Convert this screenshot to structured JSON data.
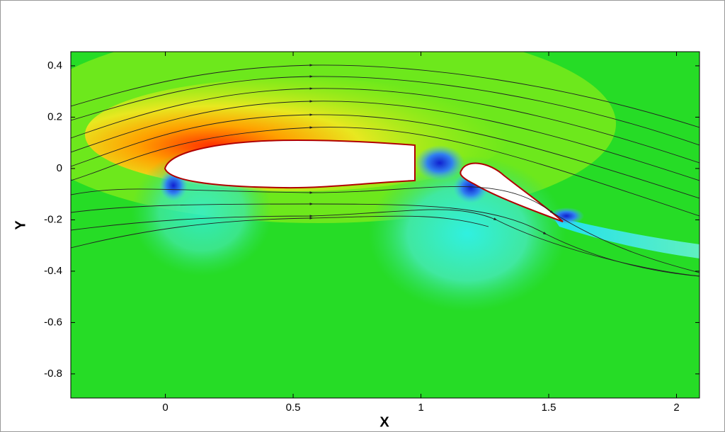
{
  "chart_data": {
    "type": "contour",
    "x_label": "X",
    "y_label": "Y",
    "xlim": [
      -0.37,
      2.09
    ],
    "ylim": [
      -0.894,
      0.455
    ],
    "xticks": [
      0,
      0.5,
      1,
      1.5,
      2
    ],
    "yticks": [
      0.4,
      0.2,
      0,
      -0.2,
      -0.4,
      -0.6,
      -0.8
    ]
  }
}
